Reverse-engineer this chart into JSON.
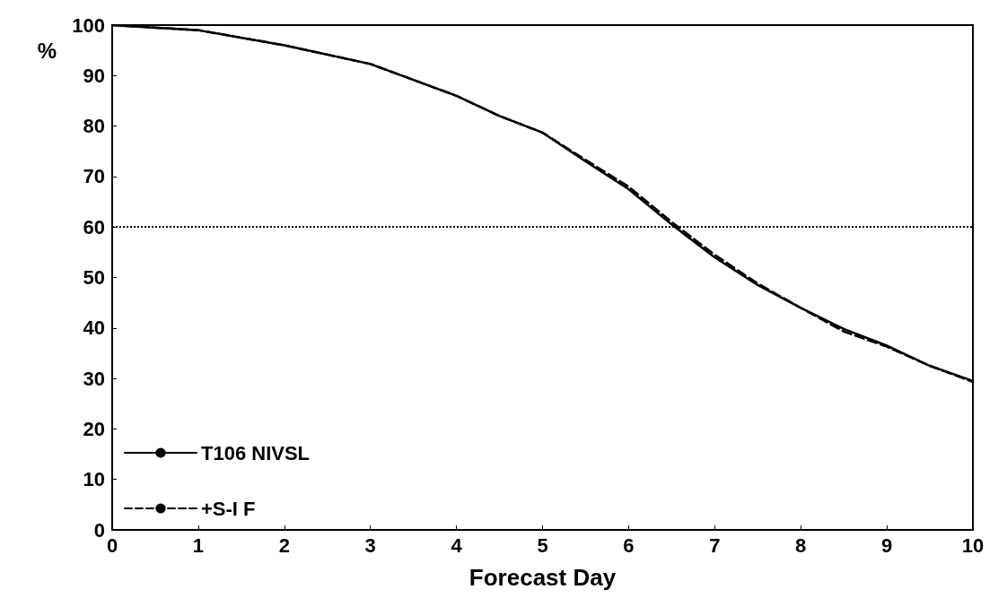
{
  "chart_data": {
    "type": "line",
    "xlabel": "Forecast Day",
    "ylabel": "%",
    "x": [
      0,
      1,
      2,
      3,
      4,
      4.5,
      5,
      5.5,
      6,
      6.5,
      7,
      7.5,
      8,
      8.5,
      9,
      9.5,
      10
    ],
    "series": [
      {
        "name": "T106 NIVSL",
        "color": "#000000",
        "line_style": "solid",
        "values": [
          100,
          99,
          96,
          92.3,
          86,
          82,
          78.7,
          73,
          67.5,
          60.5,
          54,
          48.5,
          44,
          39.8,
          36.5,
          32.5,
          29.5
        ]
      },
      {
        "name": "+S-I F",
        "color": "#000000",
        "line_style": "dashed",
        "values": [
          100,
          99,
          96,
          92.3,
          86,
          82,
          78.7,
          73.3,
          68,
          61,
          54.5,
          48.8,
          44,
          39.3,
          36.3,
          32.5,
          29.3
        ]
      }
    ],
    "xlim": [
      0,
      10
    ],
    "xticks": [
      0,
      1,
      2,
      3,
      4,
      5,
      6,
      7,
      8,
      9,
      10
    ],
    "ylim": [
      0,
      100
    ],
    "yticks": [
      0,
      10,
      20,
      30,
      40,
      50,
      60,
      70,
      80,
      90,
      100
    ],
    "ref_lines": [
      {
        "axis": "y",
        "value": 60,
        "line_style": "dotted",
        "color": "#000000"
      }
    ],
    "grid": false,
    "legend": "bottom left",
    "marker": "none"
  }
}
